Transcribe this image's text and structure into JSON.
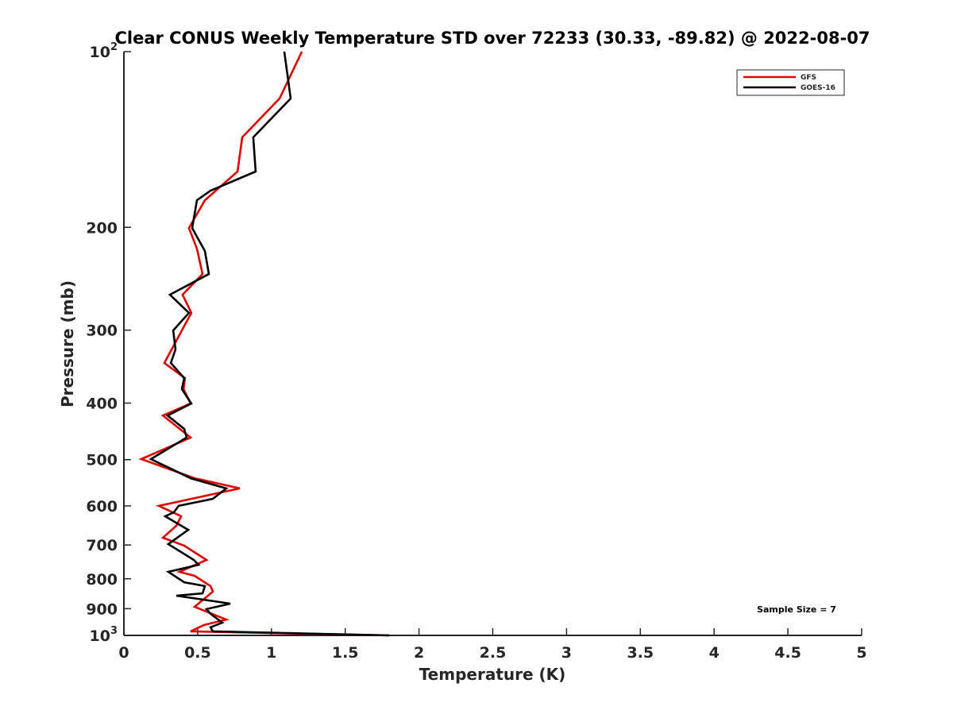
{
  "chart_data": {
    "type": "line",
    "title": "Clear CONUS Weekly Temperature STD over 72233 (30.33, -89.82) @ 2022-08-07",
    "xlabel": "Temperature (K)",
    "ylabel": "Pressure (mb)",
    "xlim": [
      0,
      5
    ],
    "ylim": [
      100,
      1000
    ],
    "yscale": "log",
    "y_reversed": true,
    "grid": false,
    "legend_position": "top-right",
    "x_ticks": [
      "0",
      "0.5",
      "1",
      "1.5",
      "2",
      "2.5",
      "3",
      "3.5",
      "4",
      "4.5",
      "5"
    ],
    "x_tick_values": [
      0,
      0.5,
      1,
      1.5,
      2,
      2.5,
      3,
      3.5,
      4,
      4.5,
      5
    ],
    "y_ticks": [
      {
        "value": 100,
        "base": "10",
        "exp": "2"
      },
      {
        "value": 200,
        "label": "200"
      },
      {
        "value": 300,
        "label": "300"
      },
      {
        "value": 400,
        "label": "400"
      },
      {
        "value": 500,
        "label": "500"
      },
      {
        "value": 600,
        "label": "600"
      },
      {
        "value": 700,
        "label": "700"
      },
      {
        "value": 800,
        "label": "800"
      },
      {
        "value": 900,
        "label": "900"
      },
      {
        "value": 1000,
        "base": "10",
        "exp": "3"
      }
    ],
    "annotation": "Sample Size = 7",
    "series": [
      {
        "name": "GFS",
        "color": "#e00000",
        "points": [
          [
            1.206,
            100
          ],
          [
            1.055,
            120.3
          ],
          [
            0.802,
            140.2
          ],
          [
            0.77,
            160.5
          ],
          [
            0.549,
            179.7
          ],
          [
            0.441,
            200.5
          ],
          [
            0.495,
            217.6
          ],
          [
            0.533,
            240.4
          ],
          [
            0.398,
            260.8
          ],
          [
            0.457,
            280.3
          ],
          [
            0.274,
            341.5
          ],
          [
            0.414,
            362.5
          ],
          [
            0.404,
            378.5
          ],
          [
            0.452,
            400.6
          ],
          [
            0.264,
            420.1
          ],
          [
            0.452,
            458.3
          ],
          [
            0.118,
            498.9
          ],
          [
            0.479,
            537.9
          ],
          [
            0.786,
            560
          ],
          [
            0.237,
            600
          ],
          [
            0.388,
            625.1
          ],
          [
            0.355,
            649
          ],
          [
            0.264,
            680.2
          ],
          [
            0.409,
            701.9
          ],
          [
            0.56,
            742.6
          ],
          [
            0.377,
            778.3
          ],
          [
            0.479,
            790.7
          ],
          [
            0.587,
            823.3
          ],
          [
            0.603,
            841.4
          ],
          [
            0.479,
            893.3
          ],
          [
            0.694,
            939.7
          ],
          [
            0.544,
            959.5
          ],
          [
            0.452,
            984.3
          ],
          [
            0.721,
            987.4
          ],
          [
            1.798,
            1000
          ]
        ]
      },
      {
        "name": "GOES-16",
        "color": "#000000",
        "points": [
          [
            1.087,
            100
          ],
          [
            1.13,
            120.3
          ],
          [
            0.877,
            140.2
          ],
          [
            0.893,
            160.5
          ],
          [
            0.587,
            173
          ],
          [
            0.495,
            179.7
          ],
          [
            0.463,
            200.5
          ],
          [
            0.549,
            219.6
          ],
          [
            0.576,
            240.4
          ],
          [
            0.312,
            260.8
          ],
          [
            0.441,
            280.3
          ],
          [
            0.334,
            300.3
          ],
          [
            0.35,
            323.6
          ],
          [
            0.318,
            341.5
          ],
          [
            0.409,
            362.5
          ],
          [
            0.393,
            378.5
          ],
          [
            0.457,
            400.6
          ],
          [
            0.296,
            420.1
          ],
          [
            0.409,
            442.9
          ],
          [
            0.425,
            458.3
          ],
          [
            0.183,
            498.9
          ],
          [
            0.452,
            537.9
          ],
          [
            0.694,
            560
          ],
          [
            0.603,
            583.4
          ],
          [
            0.371,
            600
          ],
          [
            0.339,
            615.3
          ],
          [
            0.28,
            625.1
          ],
          [
            0.436,
            659.5
          ],
          [
            0.301,
            697.7
          ],
          [
            0.474,
            742.6
          ],
          [
            0.506,
            756.9
          ],
          [
            0.301,
            778.3
          ],
          [
            0.409,
            810.9
          ],
          [
            0.549,
            823.3
          ],
          [
            0.533,
            847.4
          ],
          [
            0.355,
            855.1
          ],
          [
            0.721,
            882.2
          ],
          [
            0.56,
            901.6
          ],
          [
            0.587,
            918.4
          ],
          [
            0.667,
            950.7
          ],
          [
            0.587,
            968.5
          ],
          [
            0.603,
            984.3
          ],
          [
            1.798,
            1000
          ]
        ]
      }
    ]
  }
}
